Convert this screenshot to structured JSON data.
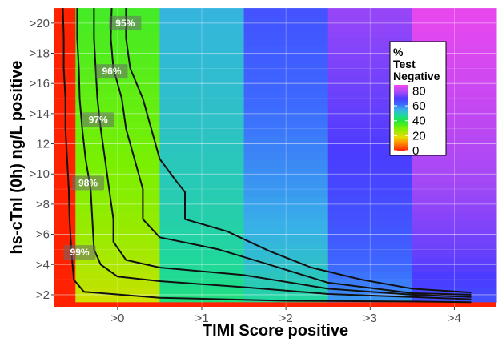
{
  "chart_data": {
    "type": "heatmap",
    "xlabel": "TIMI Score positive",
    "ylabel": "hs-cTnI (0h) ng/L positive",
    "x_tick_labels": [
      ">0",
      ">1",
      ">2",
      ">3",
      ">4"
    ],
    "x_tick_values": [
      0,
      1,
      2,
      3,
      4
    ],
    "xlim": [
      -0.75,
      4.5
    ],
    "y_tick_labels": [
      ">2",
      ">4",
      ">6",
      ">8",
      ">10",
      "12",
      ">14",
      ">16",
      ">18",
      ">20"
    ],
    "y_tick_values": [
      2,
      4,
      6,
      8,
      10,
      12,
      14,
      16,
      18,
      20
    ],
    "ylim": [
      1.2,
      21
    ],
    "grid": true,
    "legend": {
      "title_lines": [
        "%",
        "Test",
        "Negative"
      ],
      "labels": [
        "80",
        "60",
        "40",
        "20",
        "0"
      ],
      "values": [
        80,
        60,
        40,
        20,
        0
      ],
      "range": [
        0,
        88
      ],
      "position": "top-right"
    },
    "color_scale": {
      "stops": [
        {
          "value": 0,
          "color": "#ff2200"
        },
        {
          "value": 10,
          "color": "#ff8c00"
        },
        {
          "value": 18,
          "color": "#e8dc00"
        },
        {
          "value": 30,
          "color": "#7cf000"
        },
        {
          "value": 40,
          "color": "#1ee840"
        },
        {
          "value": 47,
          "color": "#20d89a"
        },
        {
          "value": 55,
          "color": "#38b0e8"
        },
        {
          "value": 62,
          "color": "#3d68ff"
        },
        {
          "value": 70,
          "color": "#4a3cff"
        },
        {
          "value": 78,
          "color": "#a448f6"
        },
        {
          "value": 88,
          "color": "#f048ec"
        }
      ]
    },
    "columns": [
      {
        "x_center": -0.625,
        "top_value": 0,
        "bottom_value": 0
      },
      {
        "x_center": 0,
        "top_value": 36,
        "bottom_value": 20
      },
      {
        "x_center": 1,
        "top_value": 54,
        "bottom_value": 44
      },
      {
        "x_center": 2,
        "top_value": 66,
        "bottom_value": 46
      },
      {
        "x_center": 3,
        "top_value": 77,
        "bottom_value": 56
      },
      {
        "x_center": 4,
        "top_value": 87,
        "bottom_value": 65
      }
    ],
    "bottom_row": {
      "y_max": 1.5,
      "value": 0
    },
    "contours": [
      {
        "label": "99%",
        "points": [
          [
            -0.65,
            21
          ],
          [
            -0.64,
            19
          ],
          [
            -0.64,
            17
          ],
          [
            -0.62,
            15
          ],
          [
            -0.62,
            13
          ],
          [
            -0.6,
            11
          ],
          [
            -0.58,
            9
          ],
          [
            -0.57,
            7
          ],
          [
            -0.55,
            5
          ],
          [
            -0.52,
            3
          ],
          [
            -0.4,
            2.2
          ],
          [
            0.5,
            1.8
          ],
          [
            2,
            1.6
          ],
          [
            3.5,
            1.55
          ],
          [
            4.2,
            1.5
          ]
        ]
      },
      {
        "label": "98%",
        "points": [
          [
            -0.48,
            21
          ],
          [
            -0.48,
            19
          ],
          [
            -0.46,
            17
          ],
          [
            -0.45,
            15
          ],
          [
            -0.42,
            13
          ],
          [
            -0.38,
            11
          ],
          [
            -0.32,
            9
          ],
          [
            -0.3,
            7
          ],
          [
            -0.28,
            5
          ],
          [
            -0.2,
            4
          ],
          [
            0,
            3.2
          ],
          [
            0.5,
            2.9
          ],
          [
            1.5,
            2.5
          ],
          [
            2.5,
            2.05
          ],
          [
            3.5,
            1.85
          ],
          [
            4.2,
            1.7
          ]
        ]
      },
      {
        "label": "97%",
        "points": [
          [
            -0.28,
            21
          ],
          [
            -0.28,
            19
          ],
          [
            -0.26,
            17
          ],
          [
            -0.24,
            15
          ],
          [
            -0.2,
            13
          ],
          [
            -0.15,
            11
          ],
          [
            -0.1,
            9
          ],
          [
            -0.05,
            7
          ],
          [
            -0.05,
            5.5
          ],
          [
            0.1,
            4.3
          ],
          [
            0.5,
            3.8
          ],
          [
            1.5,
            3.3
          ],
          [
            2.5,
            2.4
          ],
          [
            3.5,
            2.0
          ],
          [
            4.2,
            1.85
          ]
        ]
      },
      {
        "label": "96%",
        "points": [
          [
            -0.07,
            21
          ],
          [
            -0.08,
            19
          ],
          [
            -0.05,
            17
          ],
          [
            0.05,
            15
          ],
          [
            0.1,
            13
          ],
          [
            0.2,
            11
          ],
          [
            0.3,
            9
          ],
          [
            0.3,
            7
          ],
          [
            0.5,
            5.8
          ],
          [
            1.2,
            5.0
          ],
          [
            1.8,
            4.0
          ],
          [
            2.5,
            2.8
          ],
          [
            3.5,
            2.1
          ],
          [
            4.2,
            2.0
          ]
        ]
      },
      {
        "label": "95%",
        "points": [
          [
            0.1,
            21
          ],
          [
            0.1,
            19
          ],
          [
            0.15,
            17
          ],
          [
            0.3,
            15
          ],
          [
            0.4,
            13
          ],
          [
            0.5,
            11
          ],
          [
            0.7,
            9.5
          ],
          [
            0.8,
            8.8
          ],
          [
            0.8,
            7
          ],
          [
            1.3,
            6.2
          ],
          [
            1.8,
            4.9
          ],
          [
            2.3,
            3.8
          ],
          [
            2.9,
            3.0
          ],
          [
            3.5,
            2.4
          ],
          [
            4.2,
            2.15
          ]
        ]
      }
    ],
    "contour_labels": [
      {
        "text": "95%",
        "x": 0.09,
        "y": 20.0
      },
      {
        "text": "96%",
        "x": -0.07,
        "y": 16.8
      },
      {
        "text": "97%",
        "x": -0.23,
        "y": 13.6
      },
      {
        "text": "98%",
        "x": -0.35,
        "y": 9.4
      },
      {
        "text": "99%",
        "x": -0.45,
        "y": 4.8
      }
    ]
  }
}
